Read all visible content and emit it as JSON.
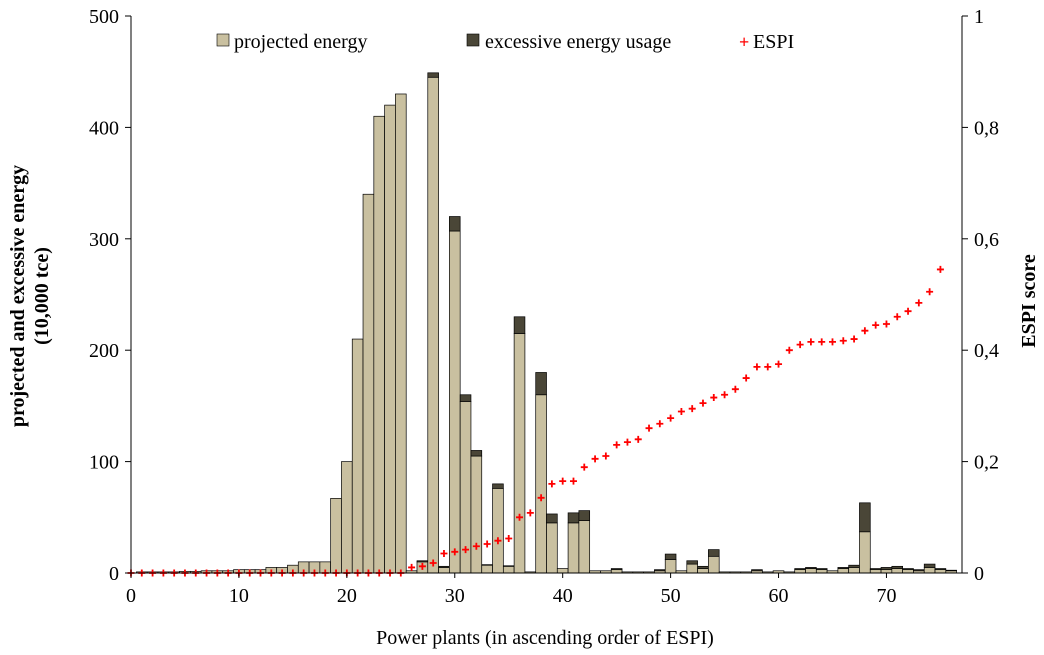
{
  "chart_data": {
    "type": "bar",
    "xlabel": "Power plants (in ascending order of ESPI)",
    "ylabel_left": "projected and excessive energy",
    "ylabel_left_line2": "(10,000 tce)",
    "ylabel_right": "ESPI score",
    "xlim": [
      0,
      77
    ],
    "xticks": [
      0,
      10,
      20,
      30,
      40,
      50,
      60,
      70
    ],
    "ylim_left": [
      0,
      500
    ],
    "yticks_left": [
      0,
      100,
      200,
      300,
      400,
      500
    ],
    "ylim_right": [
      0,
      1
    ],
    "yticks_right": [
      "0",
      "0,2",
      "0,4",
      "0,6",
      "0,8",
      "1"
    ],
    "legend_placement": "top-center",
    "grid": false,
    "colors": {
      "projected": "#c9c0a0",
      "excessive": "#4a4637",
      "espi": "#ff0000",
      "bar_edge": "#000000"
    },
    "series": [
      {
        "name": "projected energy",
        "kind": "stacked-bar",
        "x": [
          1,
          2,
          3,
          4,
          5,
          6,
          7,
          8,
          9,
          10,
          11,
          12,
          13,
          14,
          15,
          16,
          17,
          18,
          19,
          20,
          21,
          22,
          23,
          24,
          25,
          26,
          27,
          28,
          29,
          30,
          31,
          32,
          33,
          34,
          35,
          36,
          37,
          38,
          39,
          40,
          41,
          42,
          43,
          44,
          45,
          46,
          47,
          48,
          49,
          50,
          51,
          52,
          53,
          54,
          55,
          56,
          57,
          58,
          59,
          60,
          61,
          62,
          63,
          64,
          65,
          66,
          67,
          68,
          69,
          70,
          71,
          72,
          73,
          74,
          75,
          76
        ],
        "values": [
          1,
          1,
          1,
          1,
          1.5,
          1.5,
          2,
          2,
          2,
          3,
          3,
          3,
          5,
          5,
          7,
          10,
          10,
          10,
          67,
          100,
          210,
          340,
          410,
          420,
          430,
          2,
          10,
          445,
          5,
          307,
          154,
          105,
          7,
          76,
          6,
          215,
          1,
          160,
          45,
          4,
          45,
          47,
          2,
          2,
          3,
          1,
          1,
          1,
          2,
          12,
          2,
          8,
          4,
          15,
          1,
          1,
          1,
          2,
          1,
          2,
          1,
          3,
          4,
          3,
          2,
          4,
          5,
          37,
          3,
          3,
          4,
          3,
          2,
          5,
          3,
          2
        ]
      },
      {
        "name": "excessive energy usage",
        "kind": "stacked-bar",
        "x": [
          1,
          2,
          3,
          4,
          5,
          6,
          7,
          8,
          9,
          10,
          11,
          12,
          13,
          14,
          15,
          16,
          17,
          18,
          19,
          20,
          21,
          22,
          23,
          24,
          25,
          26,
          27,
          28,
          29,
          30,
          31,
          32,
          33,
          34,
          35,
          36,
          37,
          38,
          39,
          40,
          41,
          42,
          43,
          44,
          45,
          46,
          47,
          48,
          49,
          50,
          51,
          52,
          53,
          54,
          55,
          56,
          57,
          58,
          59,
          60,
          61,
          62,
          63,
          64,
          65,
          66,
          67,
          68,
          69,
          70,
          71,
          72,
          73,
          74,
          75,
          76
        ],
        "values": [
          0,
          0,
          0,
          0,
          0,
          0,
          0,
          0,
          0,
          0,
          0,
          0,
          0,
          0,
          0,
          0,
          0,
          0,
          0,
          0,
          0,
          0,
          0,
          0,
          0,
          0,
          1,
          4,
          1,
          13,
          6,
          5,
          0.5,
          4,
          0.5,
          15,
          0,
          20,
          8,
          0,
          9,
          9,
          0,
          0,
          1,
          0,
          0,
          0,
          1,
          5,
          0,
          3,
          2,
          6,
          0,
          0,
          0,
          1,
          0,
          0,
          0,
          1,
          1,
          1,
          0,
          1,
          2,
          26,
          1,
          2,
          2,
          1,
          1,
          3,
          1,
          0.5
        ]
      },
      {
        "name": "ESPI",
        "kind": "scatter-right-axis",
        "x": [
          0,
          1,
          2,
          3,
          4,
          5,
          6,
          7,
          8,
          9,
          10,
          11,
          12,
          13,
          14,
          15,
          16,
          17,
          18,
          19,
          20,
          21,
          22,
          23,
          24,
          25,
          26,
          27,
          28,
          29,
          30,
          31,
          32,
          33,
          34,
          35,
          36,
          37,
          38,
          39,
          40,
          41,
          42,
          43,
          44,
          45,
          46,
          47,
          48,
          49,
          50,
          51,
          52,
          53,
          54,
          55,
          56,
          57,
          58,
          59,
          60,
          61,
          62,
          63,
          64,
          65,
          66,
          67,
          68,
          69,
          70,
          71,
          72,
          73,
          74,
          75
        ],
        "values": [
          0,
          0,
          0,
          0,
          0,
          0,
          0,
          0,
          0,
          0,
          0,
          0,
          0,
          0,
          0,
          0,
          0,
          0,
          0,
          0,
          0,
          0,
          0,
          0,
          0,
          0,
          0.01,
          0.012,
          0.018,
          0.035,
          0.038,
          0.042,
          0.048,
          0.052,
          0.058,
          0.062,
          0.1,
          0.108,
          0.135,
          0.16,
          0.165,
          0.165,
          0.19,
          0.205,
          0.21,
          0.23,
          0.235,
          0.24,
          0.26,
          0.268,
          0.278,
          0.29,
          0.295,
          0.305,
          0.315,
          0.32,
          0.33,
          0.35,
          0.37,
          0.37,
          0.375,
          0.4,
          0.41,
          0.415,
          0.415,
          0.415,
          0.417,
          0.42,
          0.435,
          0.445,
          0.447,
          0.46,
          0.47,
          0.485,
          0.505,
          0.545
        ]
      }
    ]
  }
}
